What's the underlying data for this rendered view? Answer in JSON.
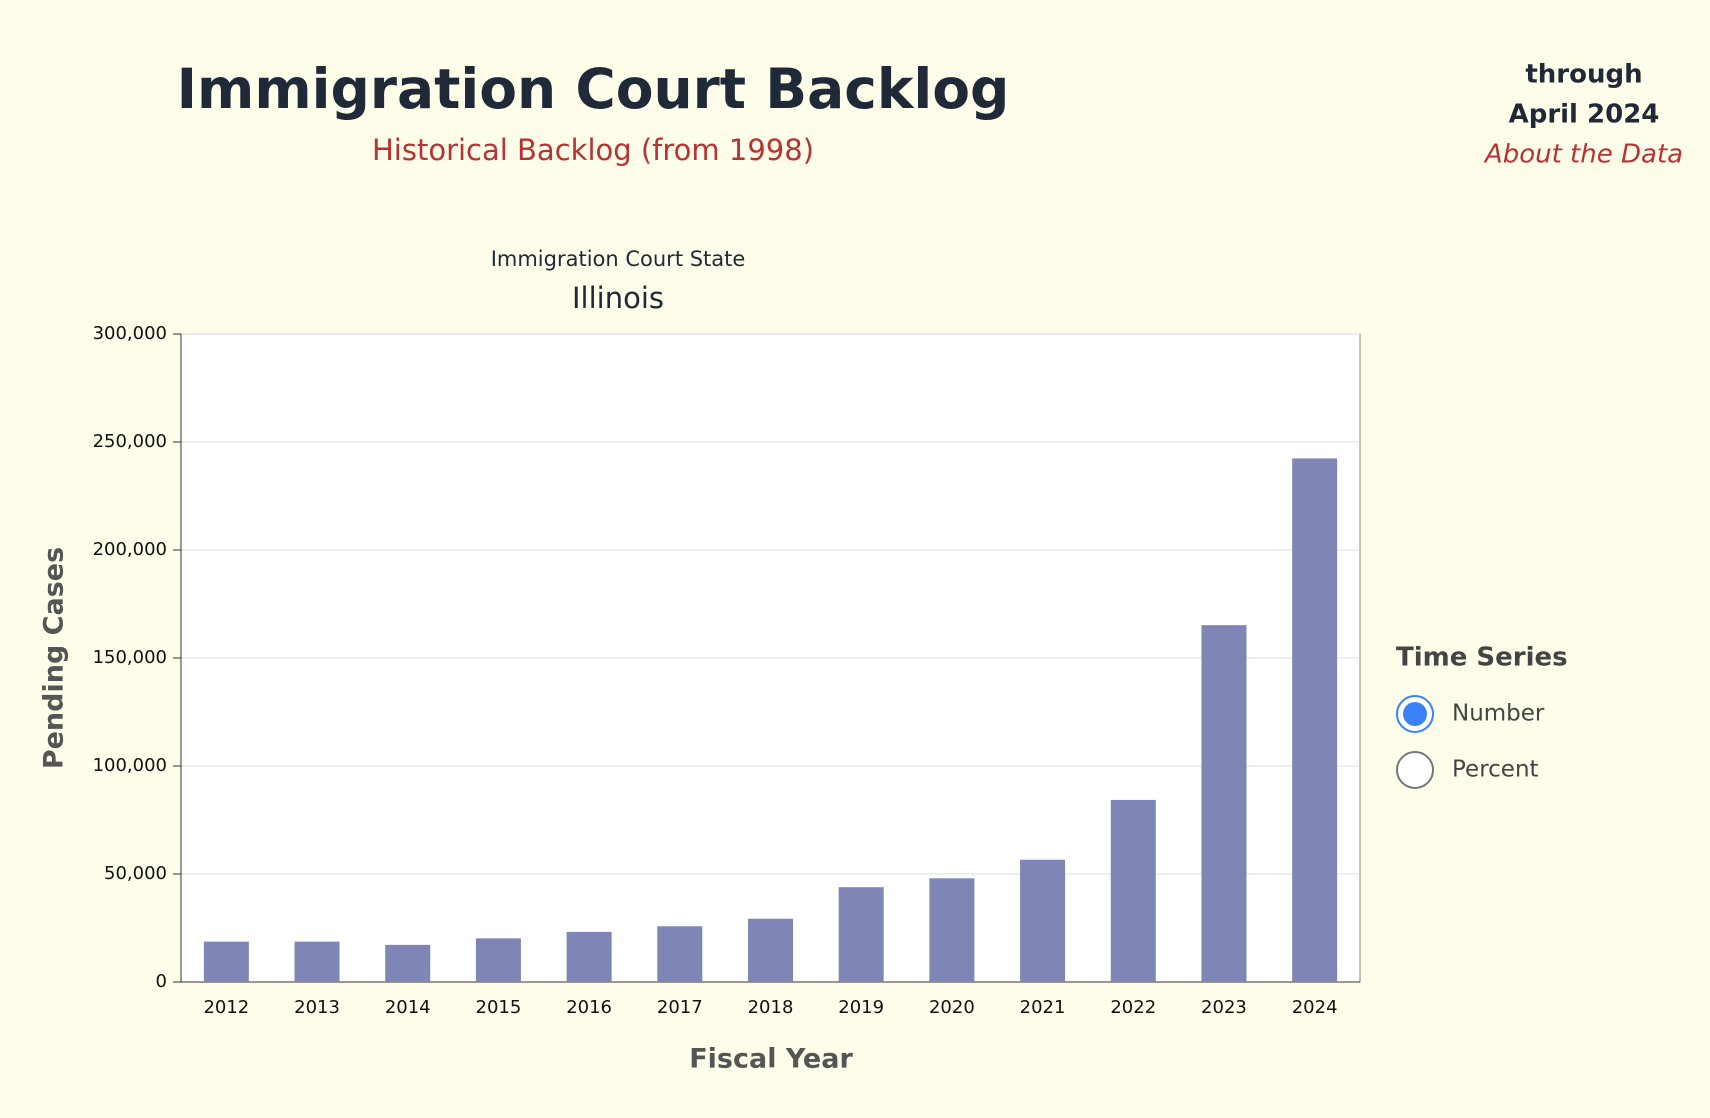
{
  "header": {
    "title": "Immigration Court Backlog",
    "subtitle": "Historical Backlog (from 1998)",
    "through": "through",
    "date": "April 2024",
    "link": "About the Data"
  },
  "chart_data": {
    "type": "bar",
    "title": "Immigration Court State",
    "subtitle": "Illinois",
    "x_label": "Fiscal Year",
    "y_label": "Pending Cases",
    "categories": [
      "2012",
      "2013",
      "2014",
      "2015",
      "2016",
      "2017",
      "2018",
      "2019",
      "2020",
      "2021",
      "2022",
      "2023",
      "2024"
    ],
    "values": [
      18700,
      18700,
      17200,
      20200,
      23200,
      25800,
      29300,
      43900,
      48000,
      56600,
      84300,
      165200,
      242400
    ],
    "color": "#7f86b5",
    "ylim": [
      0,
      300000
    ],
    "yticks": [
      0,
      {
        "value": 50000,
        "label": "50,000"
      },
      {
        "value": 100000,
        "label": "100,000"
      },
      {
        "value": 150000,
        "label": "150,000"
      },
      {
        "value": 200000,
        "label": "200,000"
      },
      {
        "value": 250000,
        "label": "250,000"
      },
      {
        "value": 300000,
        "label": "300,000"
      }
    ],
    "grid": true
  },
  "controls": {
    "title": "Time Series",
    "options": [
      "Number",
      "Percent"
    ],
    "selected": 0
  }
}
